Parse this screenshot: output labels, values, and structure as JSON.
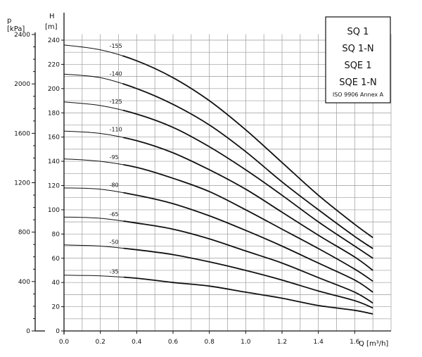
{
  "chart_data": {
    "type": "line",
    "title_lines": [
      "SQ 1",
      "SQ 1-N",
      "SQE 1",
      "SQE 1-N"
    ],
    "subtitle": "ISO 9906 Annex A",
    "xlabel": "Q [m³/h]",
    "ylabel_head_symbol": "H",
    "ylabel_head_unit": "[m]",
    "ylabel_pressure_symbol": "p",
    "ylabel_pressure_unit": "[kPa]",
    "xlim": [
      0,
      1.7
    ],
    "ylim": [
      0,
      240
    ],
    "x_ticks": [
      "0.0",
      "0.2",
      "0.4",
      "0.6",
      "0.8",
      "1.0",
      "1.2",
      "1.4",
      "1.6"
    ],
    "y_ticks": [
      "0",
      "20",
      "40",
      "60",
      "80",
      "100",
      "120",
      "140",
      "160",
      "180",
      "200",
      "220",
      "240"
    ],
    "pressure_ticks": [
      "0",
      "400",
      "800",
      "1200",
      "1600",
      "2000",
      "2400"
    ],
    "grid": true,
    "series": [
      {
        "name": "-155",
        "x": [
          0.0,
          0.2,
          0.4,
          0.6,
          0.8,
          1.0,
          1.2,
          1.4,
          1.6,
          1.7
        ],
        "values": [
          236,
          232,
          223,
          209,
          190,
          166,
          139,
          112,
          88,
          77
        ]
      },
      {
        "name": "-140",
        "x": [
          0.0,
          0.2,
          0.4,
          0.6,
          0.8,
          1.0,
          1.2,
          1.4,
          1.6,
          1.7
        ],
        "values": [
          212,
          209,
          200,
          187,
          170,
          148,
          123,
          100,
          78,
          68
        ]
      },
      {
        "name": "-125",
        "x": [
          0.0,
          0.2,
          0.4,
          0.6,
          0.8,
          1.0,
          1.2,
          1.4,
          1.6,
          1.7
        ],
        "values": [
          189,
          186,
          179,
          168,
          152,
          133,
          112,
          90,
          70,
          60
        ]
      },
      {
        "name": "-110",
        "x": [
          0.0,
          0.2,
          0.4,
          0.6,
          0.8,
          1.0,
          1.2,
          1.4,
          1.6,
          1.7
        ],
        "values": [
          165,
          163,
          157,
          147,
          133,
          117,
          98,
          79,
          61,
          50
        ]
      },
      {
        "name": "-95",
        "x": [
          0.0,
          0.2,
          0.4,
          0.6,
          0.8,
          1.0,
          1.2,
          1.4,
          1.6,
          1.7
        ],
        "values": [
          142,
          140,
          135,
          126,
          115,
          100,
          84,
          68,
          51,
          41
        ]
      },
      {
        "name": "-80",
        "x": [
          0.0,
          0.2,
          0.4,
          0.6,
          0.8,
          1.0,
          1.2,
          1.4,
          1.6,
          1.7
        ],
        "values": [
          118,
          117,
          112,
          105,
          95,
          83,
          70,
          56,
          42,
          32
        ]
      },
      {
        "name": "-65",
        "x": [
          0.0,
          0.2,
          0.4,
          0.6,
          0.8,
          1.0,
          1.2,
          1.4,
          1.6,
          1.7
        ],
        "values": [
          94,
          93,
          89,
          84,
          76,
          66,
          56,
          44,
          32,
          23
        ]
      },
      {
        "name": "-50",
        "x": [
          0.0,
          0.2,
          0.4,
          0.6,
          0.8,
          1.0,
          1.2,
          1.4,
          1.6,
          1.7
        ],
        "values": [
          71,
          70,
          67,
          63,
          57,
          50,
          42,
          33,
          25,
          19
        ]
      },
      {
        "name": "-35",
        "x": [
          0.0,
          0.2,
          0.4,
          0.6,
          0.8,
          1.0,
          1.2,
          1.4,
          1.6,
          1.7
        ],
        "values": [
          46,
          45.5,
          43.5,
          40,
          37,
          32,
          27,
          21,
          17,
          14
        ]
      }
    ]
  }
}
